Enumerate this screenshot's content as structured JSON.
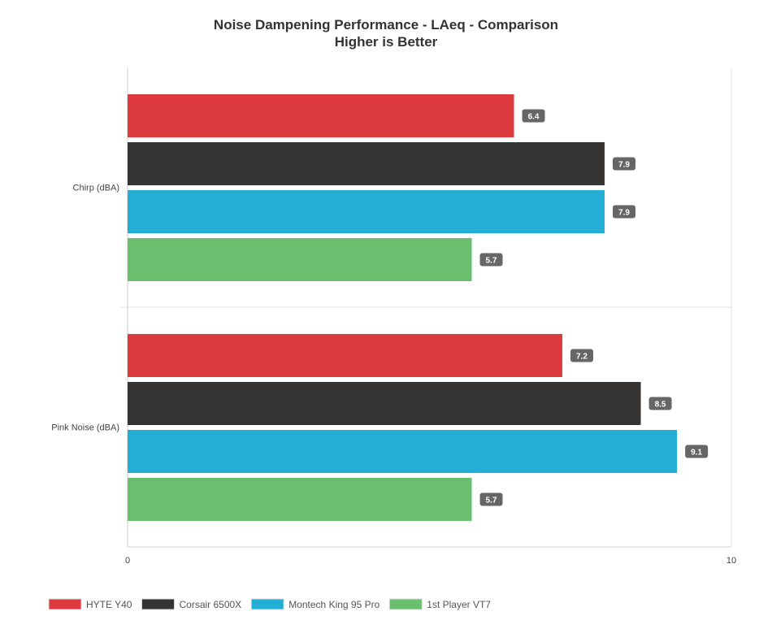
{
  "chart_data": {
    "type": "bar",
    "orientation": "horizontal",
    "title": "Noise Dampening Performance - LAeq - Comparison",
    "subtitle": "Higher is Better",
    "categories": [
      "Chirp (dBA)",
      "Pink Noise (dBA)"
    ],
    "series": [
      {
        "name": "HYTE Y40",
        "color": "#dc3a3f",
        "values": [
          6.4,
          7.2
        ]
      },
      {
        "name": "Corsair 6500X",
        "color": "#363432",
        "values": [
          7.9,
          8.5
        ]
      },
      {
        "name": "Montech King 95 Pro",
        "color": "#24aed6",
        "values": [
          7.9,
          9.1
        ]
      },
      {
        "name": "1st Player VT7",
        "color": "#69bf6d",
        "values": [
          5.7,
          5.7
        ]
      }
    ],
    "xlim": [
      0,
      10
    ],
    "xticks": [
      "0",
      "10"
    ],
    "grid": true,
    "legend": "bottom-left"
  }
}
